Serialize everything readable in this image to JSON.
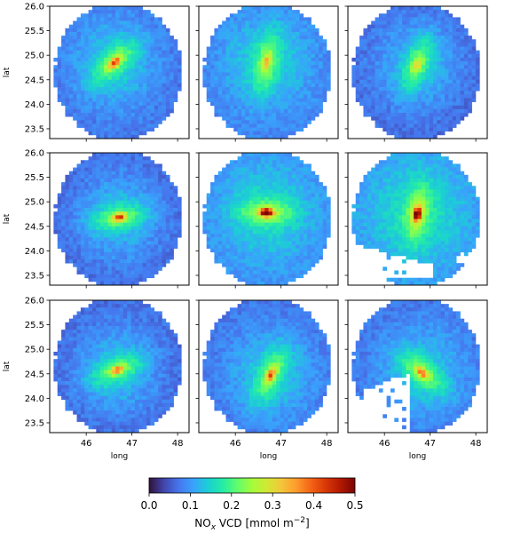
{
  "chart_data": {
    "type": "heatmap",
    "layout": "3x3 grid of maps sharing one colorbar",
    "xlabel": "long",
    "ylabel": "lat",
    "xlim": [
      45.2,
      48.25
    ],
    "ylim": [
      23.3,
      26.0
    ],
    "xticks": [
      46,
      47,
      48
    ],
    "xtick_labels": [
      "46",
      "47",
      "48"
    ],
    "yticks": [
      23.5,
      24.0,
      24.5,
      25.0,
      25.5,
      26.0
    ],
    "ytick_labels": [
      "23.5",
      "24.0",
      "24.5",
      "25.0",
      "25.5",
      "26.0"
    ],
    "footprint_center": [
      46.7,
      24.66
    ],
    "colormap": "turbo",
    "colorbar": {
      "label_prefix": "NO",
      "label_sub": "x",
      "label_rest": " VCD [mmol m",
      "label_sup": "−2",
      "label_close": "]",
      "vmin": 0.0,
      "vmax": 0.5,
      "ticks": [
        0.0,
        0.1,
        0.2,
        0.3,
        0.4,
        0.5
      ],
      "tick_labels": [
        "0.0",
        "0.1",
        "0.2",
        "0.3",
        "0.4",
        "0.5"
      ],
      "stops": [
        "#30123b",
        "#4145ab",
        "#4675ed",
        "#39a2fc",
        "#1bcfd4",
        "#24eca6",
        "#61fc6c",
        "#a4fc3b",
        "#d1e834",
        "#f3c63a",
        "#fe9b2d",
        "#f36315",
        "#d93806",
        "#b11901",
        "#7a0403"
      ]
    },
    "panels": [
      {
        "row": 0,
        "col": 0,
        "peak_lon": 46.62,
        "peak_lat": 24.85,
        "peak_value": 0.38,
        "background_value": 0.07,
        "plume_orientation_deg": 40,
        "missing_region": "none"
      },
      {
        "row": 0,
        "col": 1,
        "peak_lon": 46.68,
        "peak_lat": 24.85,
        "peak_value": 0.28,
        "background_value": 0.08,
        "plume_orientation_deg": 75,
        "missing_region": "none"
      },
      {
        "row": 0,
        "col": 2,
        "peak_lon": 46.72,
        "peak_lat": 24.8,
        "peak_value": 0.27,
        "background_value": 0.06,
        "plume_orientation_deg": 65,
        "missing_region": "none"
      },
      {
        "row": 1,
        "col": 0,
        "peak_lon": 46.72,
        "peak_lat": 24.68,
        "peak_value": 0.4,
        "background_value": 0.06,
        "plume_orientation_deg": 10,
        "missing_region": "none"
      },
      {
        "row": 1,
        "col": 1,
        "peak_lon": 46.68,
        "peak_lat": 24.78,
        "peak_value": 0.5,
        "background_value": 0.09,
        "plume_orientation_deg": 0,
        "missing_region": "none"
      },
      {
        "row": 1,
        "col": 2,
        "peak_lon": 46.72,
        "peak_lat": 24.75,
        "peak_value": 0.48,
        "background_value": 0.1,
        "plume_orientation_deg": 80,
        "missing_region": "south-west"
      },
      {
        "row": 2,
        "col": 0,
        "peak_lon": 46.68,
        "peak_lat": 24.58,
        "peak_value": 0.34,
        "background_value": 0.06,
        "plume_orientation_deg": 20,
        "missing_region": "none"
      },
      {
        "row": 2,
        "col": 1,
        "peak_lon": 46.78,
        "peak_lat": 24.48,
        "peak_value": 0.38,
        "background_value": 0.07,
        "plume_orientation_deg": 60,
        "missing_region": "none"
      },
      {
        "row": 2,
        "col": 2,
        "peak_lon": 46.82,
        "peak_lat": 24.52,
        "peak_value": 0.35,
        "background_value": 0.07,
        "plume_orientation_deg": -35,
        "missing_region": "south-west"
      }
    ]
  }
}
